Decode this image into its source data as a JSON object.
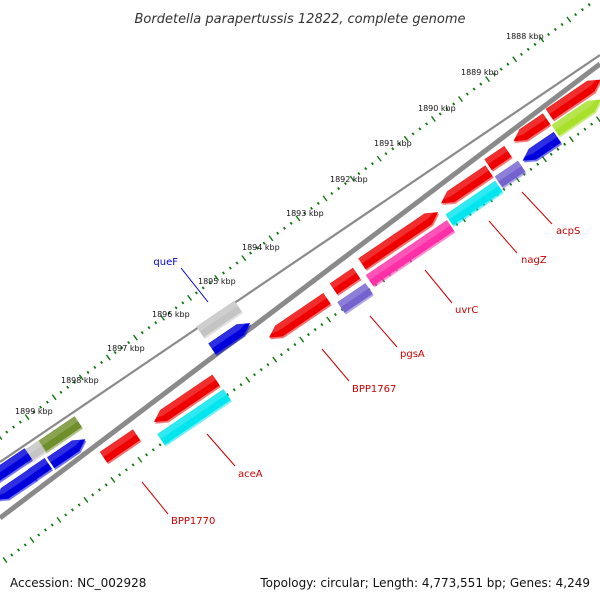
{
  "title": "Bordetella parapertussis 12822, complete genome",
  "accession": "Accession: NC_002928",
  "summary": "Topology: circular; Length: 4,773,551 bp; Genes: 4,249",
  "colors": {
    "cds": "#ee0000",
    "blast": "#0000dd",
    "gray": "#c4c4c4",
    "cyan": "#00e5ee",
    "purple": "#7463cf",
    "pink": "#ff2fa8",
    "olive": "#6f8f2a",
    "lime": "#a8e02a",
    "label_red": "#cc0000",
    "label_blue": "#0000cc",
    "backbone": "#8a8a8a",
    "ticks": "#117711"
  },
  "tick_labels": [
    "1888 kbp",
    "1889 kbp",
    "1890 kbp",
    "1891 kbp",
    "1892 kbp",
    "1893 kbp",
    "1894 kbp",
    "1895 kbp",
    "1896 kbp",
    "1897 kbp",
    "1898 kbp",
    "1899 kbp"
  ],
  "gene_labels": [
    {
      "text": "acpS",
      "color": "red"
    },
    {
      "text": "nagZ",
      "color": "red"
    },
    {
      "text": "uvrC",
      "color": "red"
    },
    {
      "text": "pgsA",
      "color": "red"
    },
    {
      "text": "BPP1767",
      "color": "red"
    },
    {
      "text": "aceA",
      "color": "red"
    },
    {
      "text": "BPP1770",
      "color": "red"
    },
    {
      "text": "queF",
      "color": "blue"
    }
  ]
}
